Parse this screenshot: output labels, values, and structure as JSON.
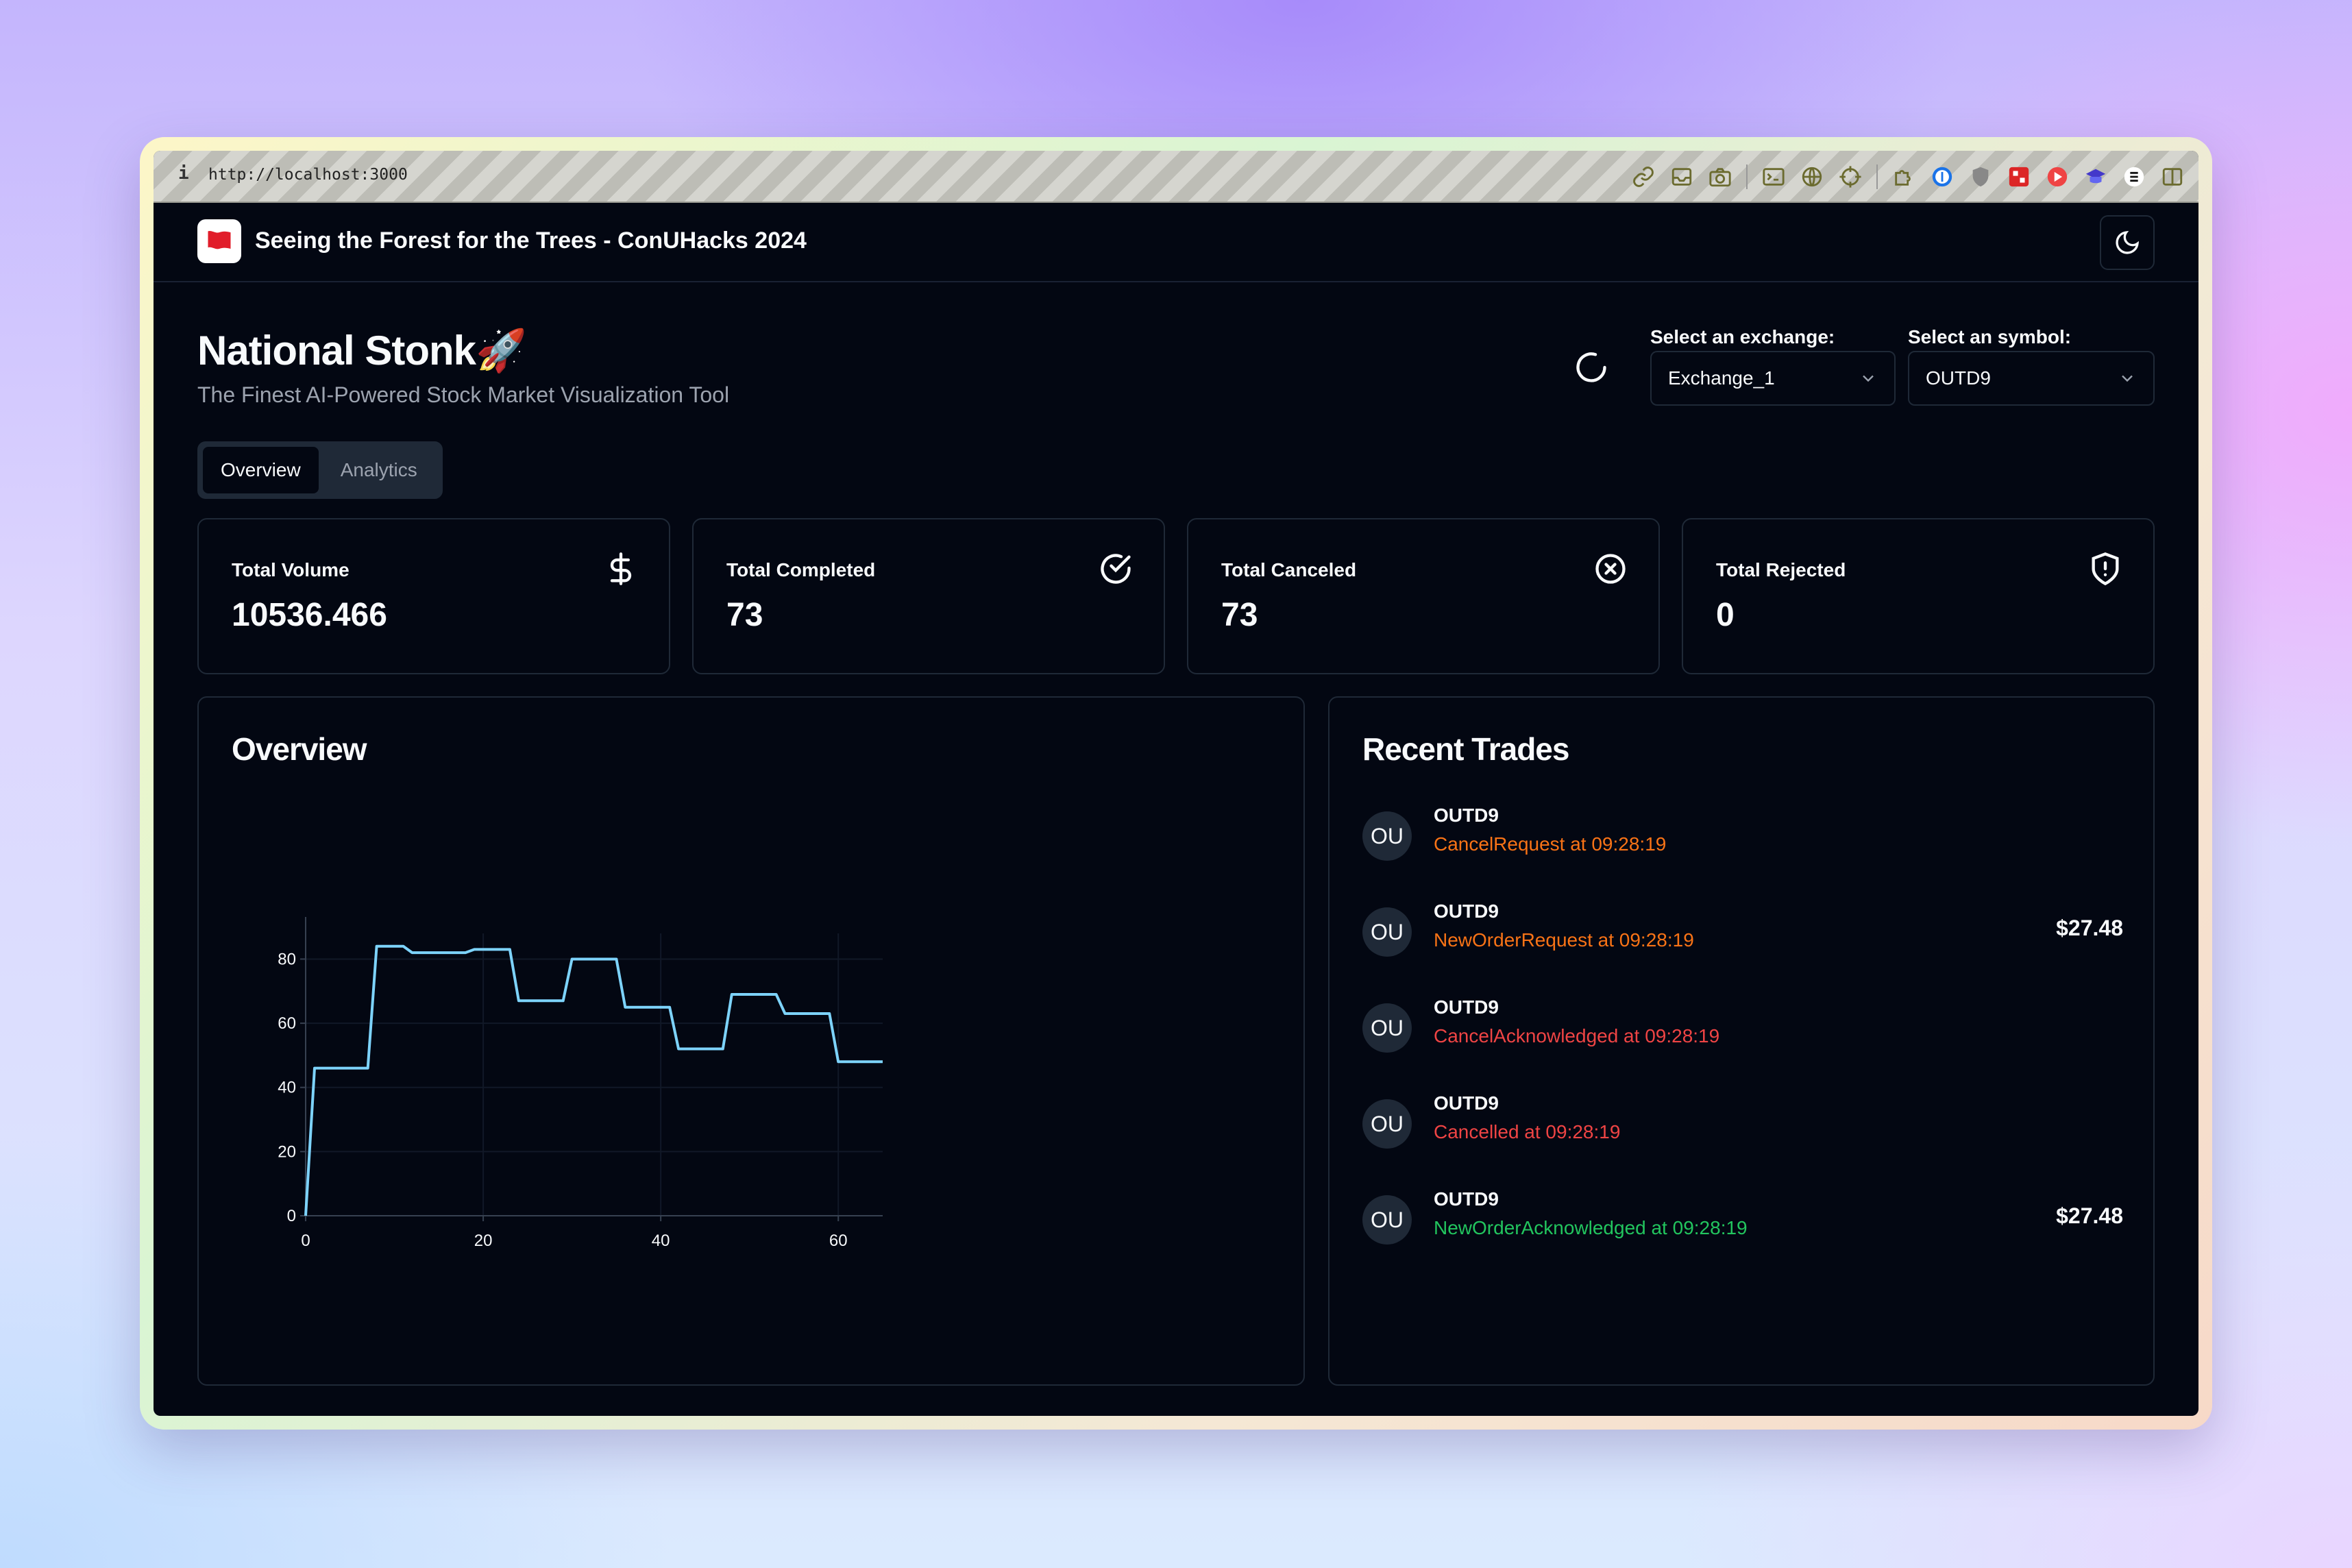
{
  "browser": {
    "info_glyph": "i",
    "url": "http://localhost:3000"
  },
  "header": {
    "title": "Seeing the Forest for the Trees - ConUHacks 2024",
    "brand_color": "#e11d2a"
  },
  "page": {
    "title": "National Stonk🚀",
    "subtitle": "The Finest AI-Powered Stock Market Visualization Tool"
  },
  "selects": {
    "exchange_label": "Select an exchange:",
    "exchange_value": "Exchange_1",
    "symbol_label": "Select an symbol:",
    "symbol_value": "OUTD9"
  },
  "tabs": [
    {
      "label": "Overview",
      "active": true
    },
    {
      "label": "Analytics",
      "active": false
    }
  ],
  "stats": [
    {
      "title": "Total Volume",
      "value": "10536.466",
      "icon": "dollar-icon"
    },
    {
      "title": "Total Completed",
      "value": "73",
      "icon": "check-circle-icon"
    },
    {
      "title": "Total Canceled",
      "value": "73",
      "icon": "x-circle-icon"
    },
    {
      "title": "Total Rejected",
      "value": "0",
      "icon": "shield-alert-icon"
    }
  ],
  "overview": {
    "title": "Overview"
  },
  "chart_data": {
    "type": "line",
    "x": [
      0,
      1,
      7,
      8,
      11,
      12,
      18,
      19,
      23,
      24,
      29,
      30,
      35,
      36,
      41,
      42,
      47,
      48,
      53,
      54,
      59,
      60,
      65
    ],
    "y": [
      0,
      46,
      46,
      84,
      84,
      82,
      82,
      83,
      83,
      67,
      67,
      80,
      80,
      65,
      65,
      52,
      52,
      69,
      69,
      63,
      63,
      48,
      48
    ],
    "xticks": [
      "0",
      "20",
      "40",
      "60"
    ],
    "yticks": [
      "0",
      "20",
      "40",
      "60",
      "80"
    ],
    "xlim": [
      0,
      65
    ],
    "ylim": [
      0,
      88
    ],
    "line_color": "#7dd3fc",
    "grid": true
  },
  "recent_trades": {
    "title": "Recent Trades",
    "items": [
      {
        "avatar": "OU",
        "symbol": "OUTD9",
        "status": "CancelRequest at 09:28:19",
        "tone": "orange",
        "price": ""
      },
      {
        "avatar": "OU",
        "symbol": "OUTD9",
        "status": "NewOrderRequest at 09:28:19",
        "tone": "orange",
        "price": "$27.48"
      },
      {
        "avatar": "OU",
        "symbol": "OUTD9",
        "status": "CancelAcknowledged at 09:28:19",
        "tone": "red",
        "price": ""
      },
      {
        "avatar": "OU",
        "symbol": "OUTD9",
        "status": "Cancelled at 09:28:19",
        "tone": "red",
        "price": ""
      },
      {
        "avatar": "OU",
        "symbol": "OUTD9",
        "status": "NewOrderAcknowledged at 09:28:19",
        "tone": "green",
        "price": "$27.48"
      }
    ]
  }
}
